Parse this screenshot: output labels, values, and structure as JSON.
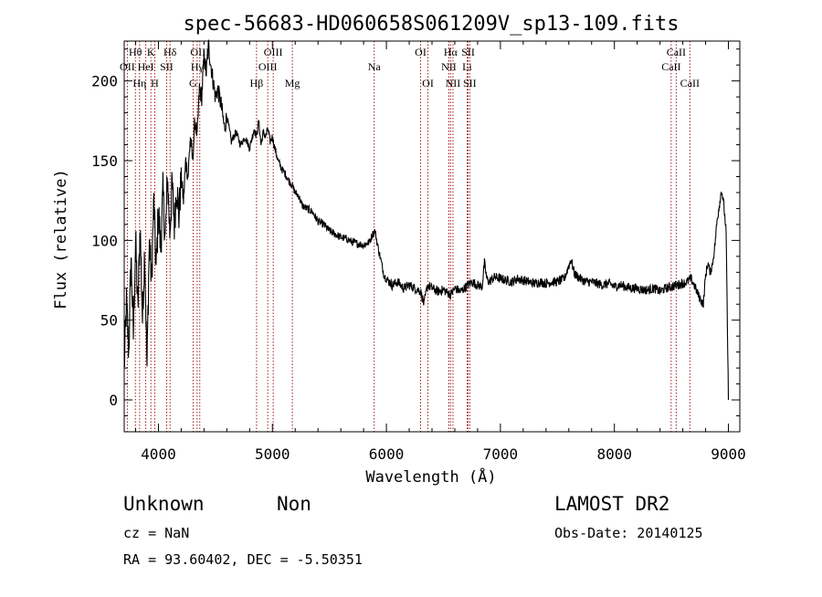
{
  "chart_data": {
    "type": "line",
    "title": "spec-56683-HD060658S061209V_sp13-109.fits",
    "xlabel": "Wavelength (Å)",
    "ylabel": "Flux (relative)",
    "xlim": [
      3700,
      9100
    ],
    "ylim": [
      -20,
      225
    ],
    "xticks": [
      4000,
      5000,
      6000,
      7000,
      8000,
      9000
    ],
    "yticks": [
      0,
      50,
      100,
      150,
      200
    ],
    "grid": false,
    "series": [
      {
        "points": [
          [
            3700,
            20
          ],
          [
            3720,
            60
          ],
          [
            3740,
            30
          ],
          [
            3760,
            90
          ],
          [
            3780,
            40
          ],
          [
            3800,
            100
          ],
          [
            3820,
            55
          ],
          [
            3840,
            110
          ],
          [
            3860,
            50
          ],
          [
            3880,
            95
          ],
          [
            3900,
            20
          ],
          [
            3920,
            100
          ],
          [
            3940,
            75
          ],
          [
            3960,
            125
          ],
          [
            3980,
            80
          ],
          [
            4000,
            120
          ],
          [
            4020,
            95
          ],
          [
            4040,
            130
          ],
          [
            4060,
            100
          ],
          [
            4080,
            140
          ],
          [
            4100,
            105
          ],
          [
            4120,
            135
          ],
          [
            4140,
            110
          ],
          [
            4160,
            135
          ],
          [
            4180,
            115
          ],
          [
            4200,
            140
          ],
          [
            4220,
            125
          ],
          [
            4240,
            150
          ],
          [
            4260,
            140
          ],
          [
            4280,
            165
          ],
          [
            4300,
            150
          ],
          [
            4320,
            175
          ],
          [
            4340,
            165
          ],
          [
            4360,
            195
          ],
          [
            4380,
            190
          ],
          [
            4400,
            215
          ],
          [
            4420,
            205
          ],
          [
            4440,
            222
          ],
          [
            4460,
            210
          ],
          [
            4480,
            200
          ],
          [
            4500,
            190
          ],
          [
            4520,
            195
          ],
          [
            4550,
            185
          ],
          [
            4580,
            170
          ],
          [
            4600,
            178
          ],
          [
            4640,
            162
          ],
          [
            4680,
            168
          ],
          [
            4720,
            160
          ],
          [
            4760,
            165
          ],
          [
            4800,
            158
          ],
          [
            4840,
            170
          ],
          [
            4860,
            165
          ],
          [
            4880,
            175
          ],
          [
            4900,
            160
          ],
          [
            4920,
            168
          ],
          [
            4940,
            165
          ],
          [
            4960,
            170
          ],
          [
            4980,
            162
          ],
          [
            5000,
            165
          ],
          [
            5020,
            158
          ],
          [
            5050,
            150
          ],
          [
            5080,
            145
          ],
          [
            5110,
            142
          ],
          [
            5140,
            138
          ],
          [
            5170,
            135
          ],
          [
            5200,
            130
          ],
          [
            5230,
            128
          ],
          [
            5260,
            122
          ],
          [
            5300,
            120
          ],
          [
            5350,
            118
          ],
          [
            5400,
            112
          ],
          [
            5450,
            110
          ],
          [
            5500,
            106
          ],
          [
            5550,
            104
          ],
          [
            5600,
            102
          ],
          [
            5650,
            101
          ],
          [
            5700,
            99
          ],
          [
            5750,
            98
          ],
          [
            5800,
            97
          ],
          [
            5850,
            99
          ],
          [
            5880,
            104
          ],
          [
            5900,
            106
          ],
          [
            5920,
            98
          ],
          [
            5950,
            88
          ],
          [
            5980,
            78
          ],
          [
            6000,
            76
          ],
          [
            6050,
            72
          ],
          [
            6100,
            74
          ],
          [
            6150,
            70
          ],
          [
            6200,
            72
          ],
          [
            6250,
            70
          ],
          [
            6300,
            68
          ],
          [
            6330,
            60
          ],
          [
            6360,
            72
          ],
          [
            6400,
            70
          ],
          [
            6450,
            68
          ],
          [
            6500,
            69
          ],
          [
            6563,
            66
          ],
          [
            6600,
            70
          ],
          [
            6650,
            68
          ],
          [
            6700,
            71
          ],
          [
            6750,
            74
          ],
          [
            6800,
            72
          ],
          [
            6840,
            71
          ],
          [
            6860,
            86
          ],
          [
            6880,
            76
          ],
          [
            6900,
            74
          ],
          [
            6950,
            77
          ],
          [
            7000,
            76
          ],
          [
            7050,
            75
          ],
          [
            7100,
            74
          ],
          [
            7150,
            76
          ],
          [
            7200,
            75
          ],
          [
            7250,
            74
          ],
          [
            7300,
            73
          ],
          [
            7350,
            74
          ],
          [
            7400,
            73
          ],
          [
            7450,
            74
          ],
          [
            7500,
            74
          ],
          [
            7560,
            76
          ],
          [
            7600,
            84
          ],
          [
            7620,
            88
          ],
          [
            7650,
            79
          ],
          [
            7700,
            76
          ],
          [
            7750,
            74
          ],
          [
            7800,
            74
          ],
          [
            7850,
            73
          ],
          [
            7900,
            72
          ],
          [
            7950,
            73
          ],
          [
            8000,
            71
          ],
          [
            8050,
            72
          ],
          [
            8100,
            71
          ],
          [
            8150,
            70
          ],
          [
            8200,
            70
          ],
          [
            8250,
            69
          ],
          [
            8300,
            69
          ],
          [
            8350,
            70
          ],
          [
            8400,
            68
          ],
          [
            8450,
            70
          ],
          [
            8500,
            71
          ],
          [
            8550,
            72
          ],
          [
            8600,
            73
          ],
          [
            8640,
            74
          ],
          [
            8670,
            76
          ],
          [
            8700,
            72
          ],
          [
            8740,
            65
          ],
          [
            8780,
            60
          ],
          [
            8800,
            78
          ],
          [
            8820,
            86
          ],
          [
            8840,
            80
          ],
          [
            8860,
            85
          ],
          [
            8880,
            96
          ],
          [
            8900,
            112
          ],
          [
            8920,
            122
          ],
          [
            8940,
            132
          ],
          [
            8960,
            122
          ],
          [
            8980,
            105
          ],
          [
            9000,
            0
          ]
        ]
      }
    ],
    "lines": [
      {
        "label": "Hθ",
        "x": 3798,
        "row": 0
      },
      {
        "label": "OII",
        "x": 3727,
        "row": 1
      },
      {
        "label": "Hη",
        "x": 3835,
        "row": 2
      },
      {
        "label": "HeI",
        "x": 3889,
        "row": 1
      },
      {
        "label": "K",
        "x": 3934,
        "row": 0
      },
      {
        "label": "H",
        "x": 3968,
        "row": 2
      },
      {
        "label": "SII",
        "x": 4072,
        "row": 1
      },
      {
        "label": "Hδ",
        "x": 4102,
        "row": 0
      },
      {
        "label": "OIII",
        "x": 4363,
        "row": 0
      },
      {
        "label": "Hγ",
        "x": 4340,
        "row": 1
      },
      {
        "label": "G",
        "x": 4304,
        "row": 2
      },
      {
        "label": "Hβ",
        "x": 4861,
        "row": 2
      },
      {
        "label": "OIII",
        "x": 5007,
        "row": 0
      },
      {
        "label": "OIII",
        "x": 4959,
        "row": 1
      },
      {
        "label": "Mg",
        "x": 5175,
        "row": 2
      },
      {
        "label": "Na",
        "x": 5893,
        "row": 1
      },
      {
        "label": "OI",
        "x": 6300,
        "row": 0
      },
      {
        "label": "OI",
        "x": 6364,
        "row": 2
      },
      {
        "label": "Hα",
        "x": 6563,
        "row": 0
      },
      {
        "label": "NII",
        "x": 6548,
        "row": 1
      },
      {
        "label": "NII",
        "x": 6584,
        "row": 2
      },
      {
        "label": "SII",
        "x": 6717,
        "row": 0
      },
      {
        "label": "Li",
        "x": 6708,
        "row": 1
      },
      {
        "label": "SII",
        "x": 6731,
        "row": 2
      },
      {
        "label": "CaII",
        "x": 8542,
        "row": 0
      },
      {
        "label": "CaII",
        "x": 8498,
        "row": 1
      },
      {
        "label": "CaII",
        "x": 8662,
        "row": 2
      }
    ]
  },
  "info": {
    "object_class": "Unknown",
    "subclass": "Non",
    "survey": "LAMOST DR2",
    "redshift_text": "cz = NaN",
    "obs_date_text": "Obs-Date: 20140125",
    "coords_text": "RA =  93.60402, DEC =  -5.50351"
  }
}
